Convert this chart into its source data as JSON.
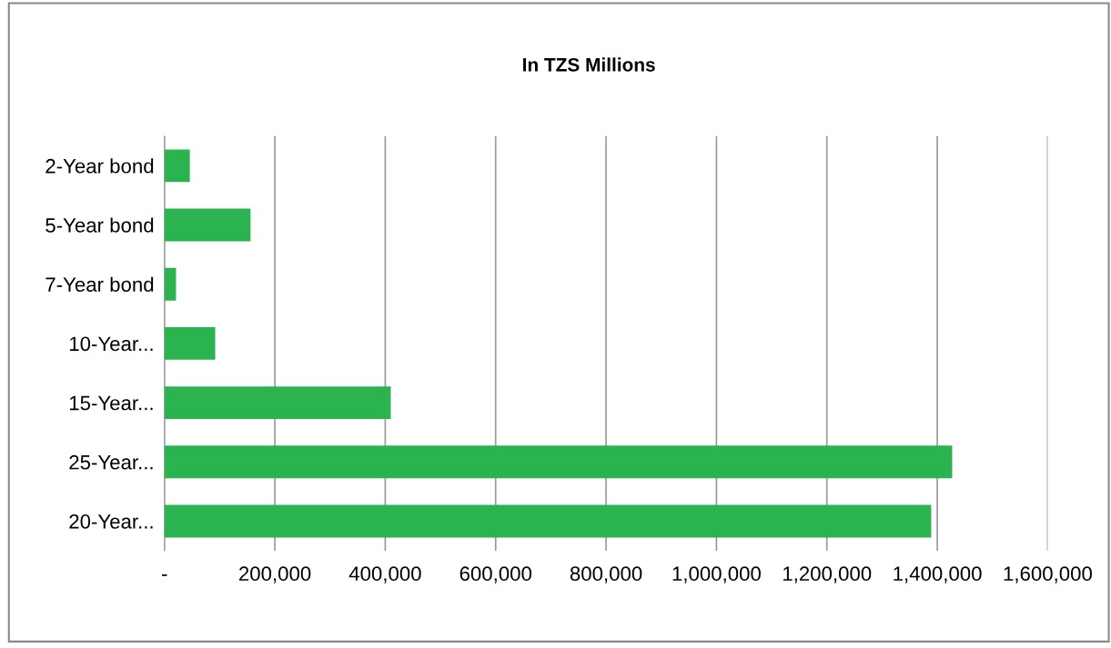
{
  "chart_data": {
    "type": "bar",
    "orientation": "horizontal",
    "title": "In TZS Millions",
    "categories": [
      "2-Year bond",
      "5-Year bond",
      "7-Year bond",
      "10-Year...",
      "15-Year...",
      "25-Year...",
      "20-Year..."
    ],
    "values": [
      46000,
      156000,
      21000,
      92000,
      410000,
      1427000,
      1389000
    ],
    "color": "#2ab34f",
    "xlim": [
      0,
      1600000
    ],
    "xticks": [
      {
        "value": 0,
        "label": "-"
      },
      {
        "value": 200000,
        "label": "200,000"
      },
      {
        "value": 400000,
        "label": "400,000"
      },
      {
        "value": 600000,
        "label": "600,000"
      },
      {
        "value": 800000,
        "label": "800,000"
      },
      {
        "value": 1000000,
        "label": "1,000,000"
      },
      {
        "value": 1200000,
        "label": "1,200,000"
      },
      {
        "value": 1400000,
        "label": "1,400,000"
      },
      {
        "value": 1600000,
        "label": "1,600,000"
      }
    ],
    "grid": "x"
  }
}
